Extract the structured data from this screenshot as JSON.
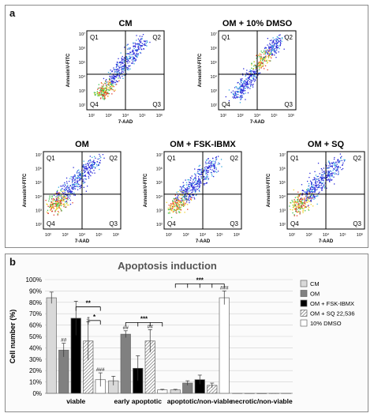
{
  "panel_a": {
    "label": "a",
    "axis_x_label": "7-AAD",
    "axis_y_label": "AnnexinV-FITC",
    "quadrants": [
      "Q1",
      "Q2",
      "Q3",
      "Q4"
    ],
    "ticks_x": [
      "10²",
      "10³",
      "10⁴",
      "10⁵",
      "10⁶"
    ],
    "ticks_y": [
      "10²",
      "10³",
      "10⁴",
      "10⁵",
      "10⁶",
      "10⁷"
    ],
    "plots": [
      {
        "title": "CM"
      },
      {
        "title": "OM + 10% DMSO"
      },
      {
        "title": "OM"
      },
      {
        "title": "OM + FSK-IBMX"
      },
      {
        "title": "OM + SQ"
      }
    ]
  },
  "panel_b": {
    "label": "b",
    "title": "Apoptosis induction",
    "ylabel": "Cell number (%)",
    "colors": {
      "CM": "#d9d9d9",
      "OM": "#808080",
      "FSK": "#000000",
      "SQ": "#cccccc",
      "DMSO": "#ffffff"
    }
  },
  "chart_data": {
    "type": "bar",
    "title": "Apoptosis induction",
    "xlabel": "",
    "ylabel": "Cell number (%)",
    "ylim": [
      0,
      100
    ],
    "yticks": [
      "0%",
      "10%",
      "20%",
      "30%",
      "40%",
      "50%",
      "60%",
      "70%",
      "80%",
      "90%",
      "100%"
    ],
    "categories": [
      "viable",
      "early apoptotic",
      "apoptotic/non-viable",
      "necrotic/non-viable"
    ],
    "series": [
      {
        "name": "CM",
        "values": [
          84,
          11,
          3,
          0
        ],
        "errors": [
          5,
          4,
          0.5,
          0
        ]
      },
      {
        "name": "OM",
        "values": [
          38,
          52,
          9,
          0
        ],
        "errors": [
          6,
          3,
          2,
          0
        ]
      },
      {
        "name": "OM + FSK-IBMX",
        "values": [
          66,
          22,
          12,
          0
        ],
        "errors": [
          15,
          11,
          4,
          0
        ]
      },
      {
        "name": "OM + SQ 22,536",
        "values": [
          46,
          46,
          7,
          0
        ],
        "errors": [
          17,
          10,
          2,
          0
        ]
      },
      {
        "name": "10% DMSO",
        "values": [
          12,
          3,
          84,
          0
        ],
        "errors": [
          6,
          0.5,
          6,
          0
        ]
      }
    ],
    "bar_annotations": [
      {
        "series": 1,
        "category": 0,
        "text": "##"
      },
      {
        "series": 3,
        "category": 0,
        "text": "#"
      },
      {
        "series": 4,
        "category": 0,
        "text": "###"
      },
      {
        "series": 1,
        "category": 1,
        "text": "##"
      },
      {
        "series": 3,
        "category": 1,
        "text": "##"
      },
      {
        "series": 4,
        "category": 2,
        "text": "###"
      }
    ],
    "significance": [
      {
        "text": "**",
        "category": 0,
        "from_series": 2,
        "to_series": 4
      },
      {
        "text": "*",
        "category": 0,
        "from_series": 3,
        "to_series": 4
      },
      {
        "text": "***",
        "category": 1,
        "from_series": 1,
        "to_series": 4,
        "ticks": [
          1,
          2,
          3,
          4
        ]
      },
      {
        "text": "***",
        "category": 2,
        "from_series": 0,
        "to_series": 4,
        "ticks": [
          0,
          1,
          2,
          3,
          4
        ]
      }
    ],
    "legend_position": "right"
  }
}
